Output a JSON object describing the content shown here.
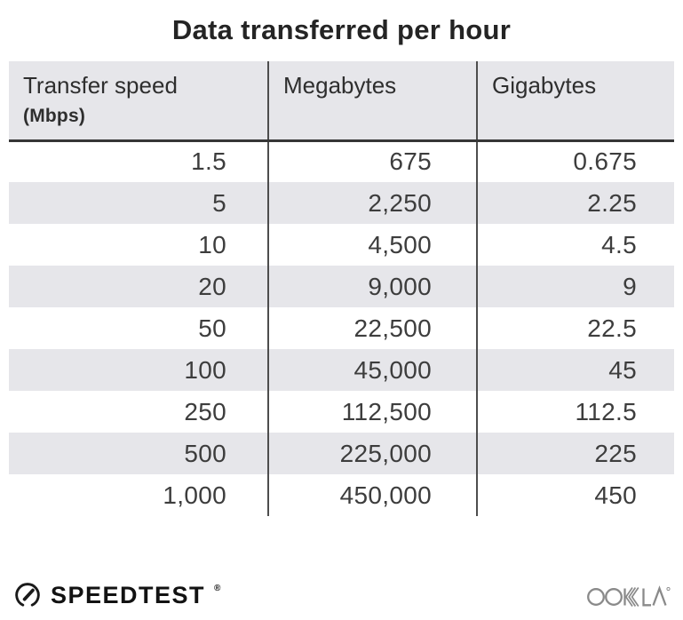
{
  "title": "Data transferred per hour",
  "table": {
    "columns": [
      {
        "label": "Transfer speed",
        "sublabel": "(Mbps)"
      },
      {
        "label": "Megabytes",
        "sublabel": ""
      },
      {
        "label": "Gigabytes",
        "sublabel": ""
      }
    ],
    "rows": [
      [
        "1.5",
        "675",
        "0.675"
      ],
      [
        "5",
        "2,250",
        "2.25"
      ],
      [
        "10",
        "4,500",
        "4.5"
      ],
      [
        "20",
        "9,000",
        "9"
      ],
      [
        "50",
        "22,500",
        "22.5"
      ],
      [
        "100",
        "45,000",
        "45"
      ],
      [
        "250",
        "112,500",
        "112.5"
      ],
      [
        "500",
        "225,000",
        "225"
      ],
      [
        "1,000",
        "450,000",
        "450"
      ]
    ]
  },
  "chart_data": {
    "type": "table",
    "title": "Data transferred per hour",
    "columns": [
      "Transfer speed (Mbps)",
      "Megabytes",
      "Gigabytes"
    ],
    "rows": [
      [
        1.5,
        675,
        0.675
      ],
      [
        5,
        2250,
        2.25
      ],
      [
        10,
        4500,
        4.5
      ],
      [
        20,
        9000,
        9
      ],
      [
        50,
        22500,
        22.5
      ],
      [
        100,
        45000,
        45
      ],
      [
        250,
        112500,
        112.5
      ],
      [
        500,
        225000,
        225
      ],
      [
        1000,
        450000,
        450
      ]
    ]
  },
  "footer": {
    "brand": "SPEEDTEST",
    "brand_trademark": "®",
    "partner": "OOKLA",
    "partner_trademark": "®"
  },
  "colors": {
    "header_bg": "#e6e6ea",
    "row_alt_bg": "#e6e6ea",
    "title_text": "#242424",
    "body_text": "#3d3d3d",
    "divider": "#4d4d4d",
    "header_rule": "#363636",
    "speedtest_black": "#121212",
    "ookla_gray": "#8a8a8a"
  }
}
